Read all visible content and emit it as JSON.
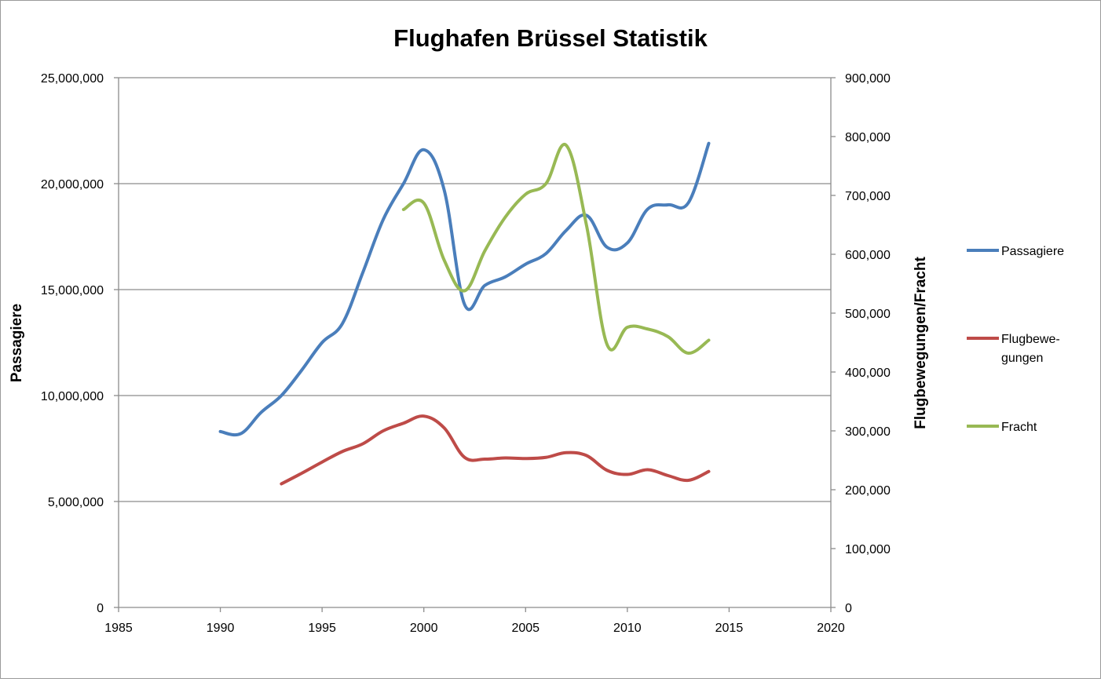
{
  "chart_data": {
    "type": "line",
    "title": "Flughafen Brüssel Statistik",
    "xlabel": "",
    "ylabel": "Passagiere",
    "y2label": "Flugbewegungen/Fracht",
    "xlim": [
      1985,
      2020
    ],
    "ylim": [
      0,
      25000000
    ],
    "y2lim": [
      0,
      900000
    ],
    "x_ticks": [
      "1985",
      "1990",
      "1995",
      "2000",
      "2005",
      "2010",
      "2015",
      "2020"
    ],
    "y_ticks": [
      "0",
      "5,000,000",
      "10,000,000",
      "15,000,000",
      "20,000,000",
      "25,000,000"
    ],
    "y2_ticks": [
      "0",
      "100,000",
      "200,000",
      "300,000",
      "400,000",
      "500,000",
      "600,000",
      "700,000",
      "800,000",
      "900,000"
    ],
    "grid": true,
    "legend_position": "right",
    "series": [
      {
        "name": "Passagiere",
        "axis": "left",
        "color": "#4a7ebb",
        "x": [
          1990,
          1991,
          1992,
          1993,
          1994,
          1995,
          1996,
          1997,
          1998,
          1999,
          2000,
          2001,
          2002,
          2003,
          2004,
          2005,
          2006,
          2007,
          2008,
          2009,
          2010,
          2011,
          2012,
          2013,
          2014
        ],
        "values": [
          8300000,
          8200000,
          9200000,
          10000000,
          11200000,
          12500000,
          13400000,
          15800000,
          18300000,
          20000000,
          21600000,
          19700000,
          14300000,
          15200000,
          15600000,
          16200000,
          16700000,
          17800000,
          18500000,
          17000000,
          17200000,
          18800000,
          19000000,
          19100000,
          21900000
        ]
      },
      {
        "name": "Flugbewe-\ngungen",
        "axis": "right",
        "color": "#be4b48",
        "x": [
          1993,
          1994,
          1995,
          1996,
          1997,
          1998,
          1999,
          2000,
          2001,
          2002,
          2003,
          2004,
          2005,
          2006,
          2007,
          2008,
          2009,
          2010,
          2011,
          2012,
          2013,
          2014
        ],
        "values": [
          210000,
          228000,
          247000,
          265000,
          278000,
          300000,
          313000,
          325000,
          305000,
          255000,
          252000,
          254000,
          253000,
          255000,
          263000,
          258000,
          233000,
          226000,
          234000,
          224000,
          216000,
          231000
        ]
      },
      {
        "name": "Fracht",
        "axis": "right",
        "color": "#98b954",
        "x": [
          1999,
          2000,
          2001,
          2002,
          2003,
          2004,
          2005,
          2006,
          2007,
          2008,
          2009,
          2010,
          2011,
          2012,
          2013,
          2014
        ],
        "values": [
          676000,
          687000,
          590000,
          538000,
          606000,
          663000,
          702000,
          720000,
          785000,
          648000,
          447000,
          476000,
          473000,
          460000,
          432000,
          454000
        ]
      }
    ]
  }
}
